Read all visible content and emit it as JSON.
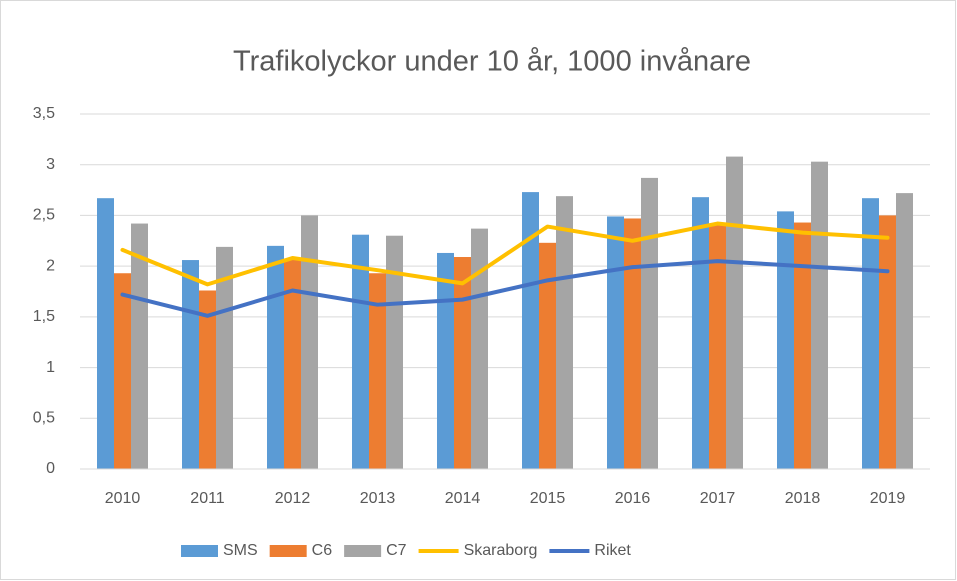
{
  "chart_data": {
    "type": "bar",
    "title": "Trafikolyckor under 10 år, 1000 invånare",
    "categories": [
      "2010",
      "2011",
      "2012",
      "2013",
      "2014",
      "2015",
      "2016",
      "2017",
      "2018",
      "2019"
    ],
    "series": [
      {
        "name": "SMS",
        "type": "bar",
        "color": "#5b9bd5",
        "values": [
          2.67,
          2.06,
          2.2,
          2.31,
          2.13,
          2.73,
          2.49,
          2.68,
          2.54,
          2.67
        ]
      },
      {
        "name": "C6",
        "type": "bar",
        "color": "#ed7d31",
        "values": [
          1.93,
          1.76,
          2.07,
          1.93,
          2.09,
          2.23,
          2.47,
          2.42,
          2.43,
          2.5
        ]
      },
      {
        "name": "C7",
        "type": "bar",
        "color": "#a5a5a5",
        "values": [
          2.42,
          2.19,
          2.5,
          2.3,
          2.37,
          2.69,
          2.87,
          3.08,
          3.03,
          2.72
        ]
      },
      {
        "name": "Skaraborg",
        "type": "line",
        "color": "#ffc000",
        "values": [
          2.16,
          1.82,
          2.08,
          1.96,
          1.83,
          2.39,
          2.25,
          2.42,
          2.33,
          2.28
        ]
      },
      {
        "name": "Riket",
        "type": "line",
        "color": "#4472c4",
        "values": [
          1.72,
          1.51,
          1.76,
          1.62,
          1.67,
          1.86,
          1.99,
          2.05,
          2.0,
          1.95
        ]
      }
    ],
    "ylim": [
      0,
      3.5
    ],
    "yticks": [
      0,
      {
        "value": 0.5,
        "label": "0,5"
      },
      1,
      {
        "value": 1.5,
        "label": "1,5"
      },
      2,
      {
        "value": 2.5,
        "label": "2,5"
      },
      3,
      {
        "value": 3.5,
        "label": "3,5"
      }
    ],
    "grid": true,
    "legend": "bottom"
  }
}
